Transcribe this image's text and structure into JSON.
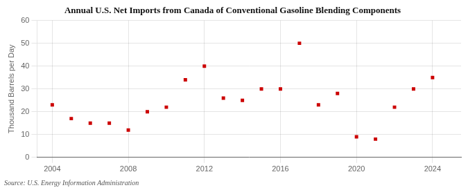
{
  "chart_data": {
    "type": "scatter",
    "title": "Annual U.S. Net Imports from Canada of Conventional Gasoline Blending Components",
    "ylabel": "Thousand Barrels per Day",
    "annotations": [
      "Source: U.S. Energy Information Administration"
    ],
    "x": [
      2004,
      2005,
      2006,
      2007,
      2008,
      2009,
      2010,
      2011,
      2012,
      2013,
      2014,
      2015,
      2016,
      2017,
      2018,
      2019,
      2020,
      2021,
      2022,
      2023,
      2024
    ],
    "values": [
      23,
      17,
      15,
      15,
      12,
      20,
      22,
      34,
      40,
      26,
      25,
      30,
      30,
      50,
      23,
      28,
      9,
      8,
      22,
      30,
      35
    ],
    "color": "#cc0000",
    "marker": "square",
    "xlim": [
      2003.2,
      2025.5
    ],
    "xticks": [
      2004,
      2008,
      2012,
      2016,
      2020,
      2024
    ],
    "ylim": [
      0,
      60
    ],
    "yticks": [
      0,
      10,
      20,
      30,
      40,
      50,
      60
    ],
    "grid": true
  }
}
